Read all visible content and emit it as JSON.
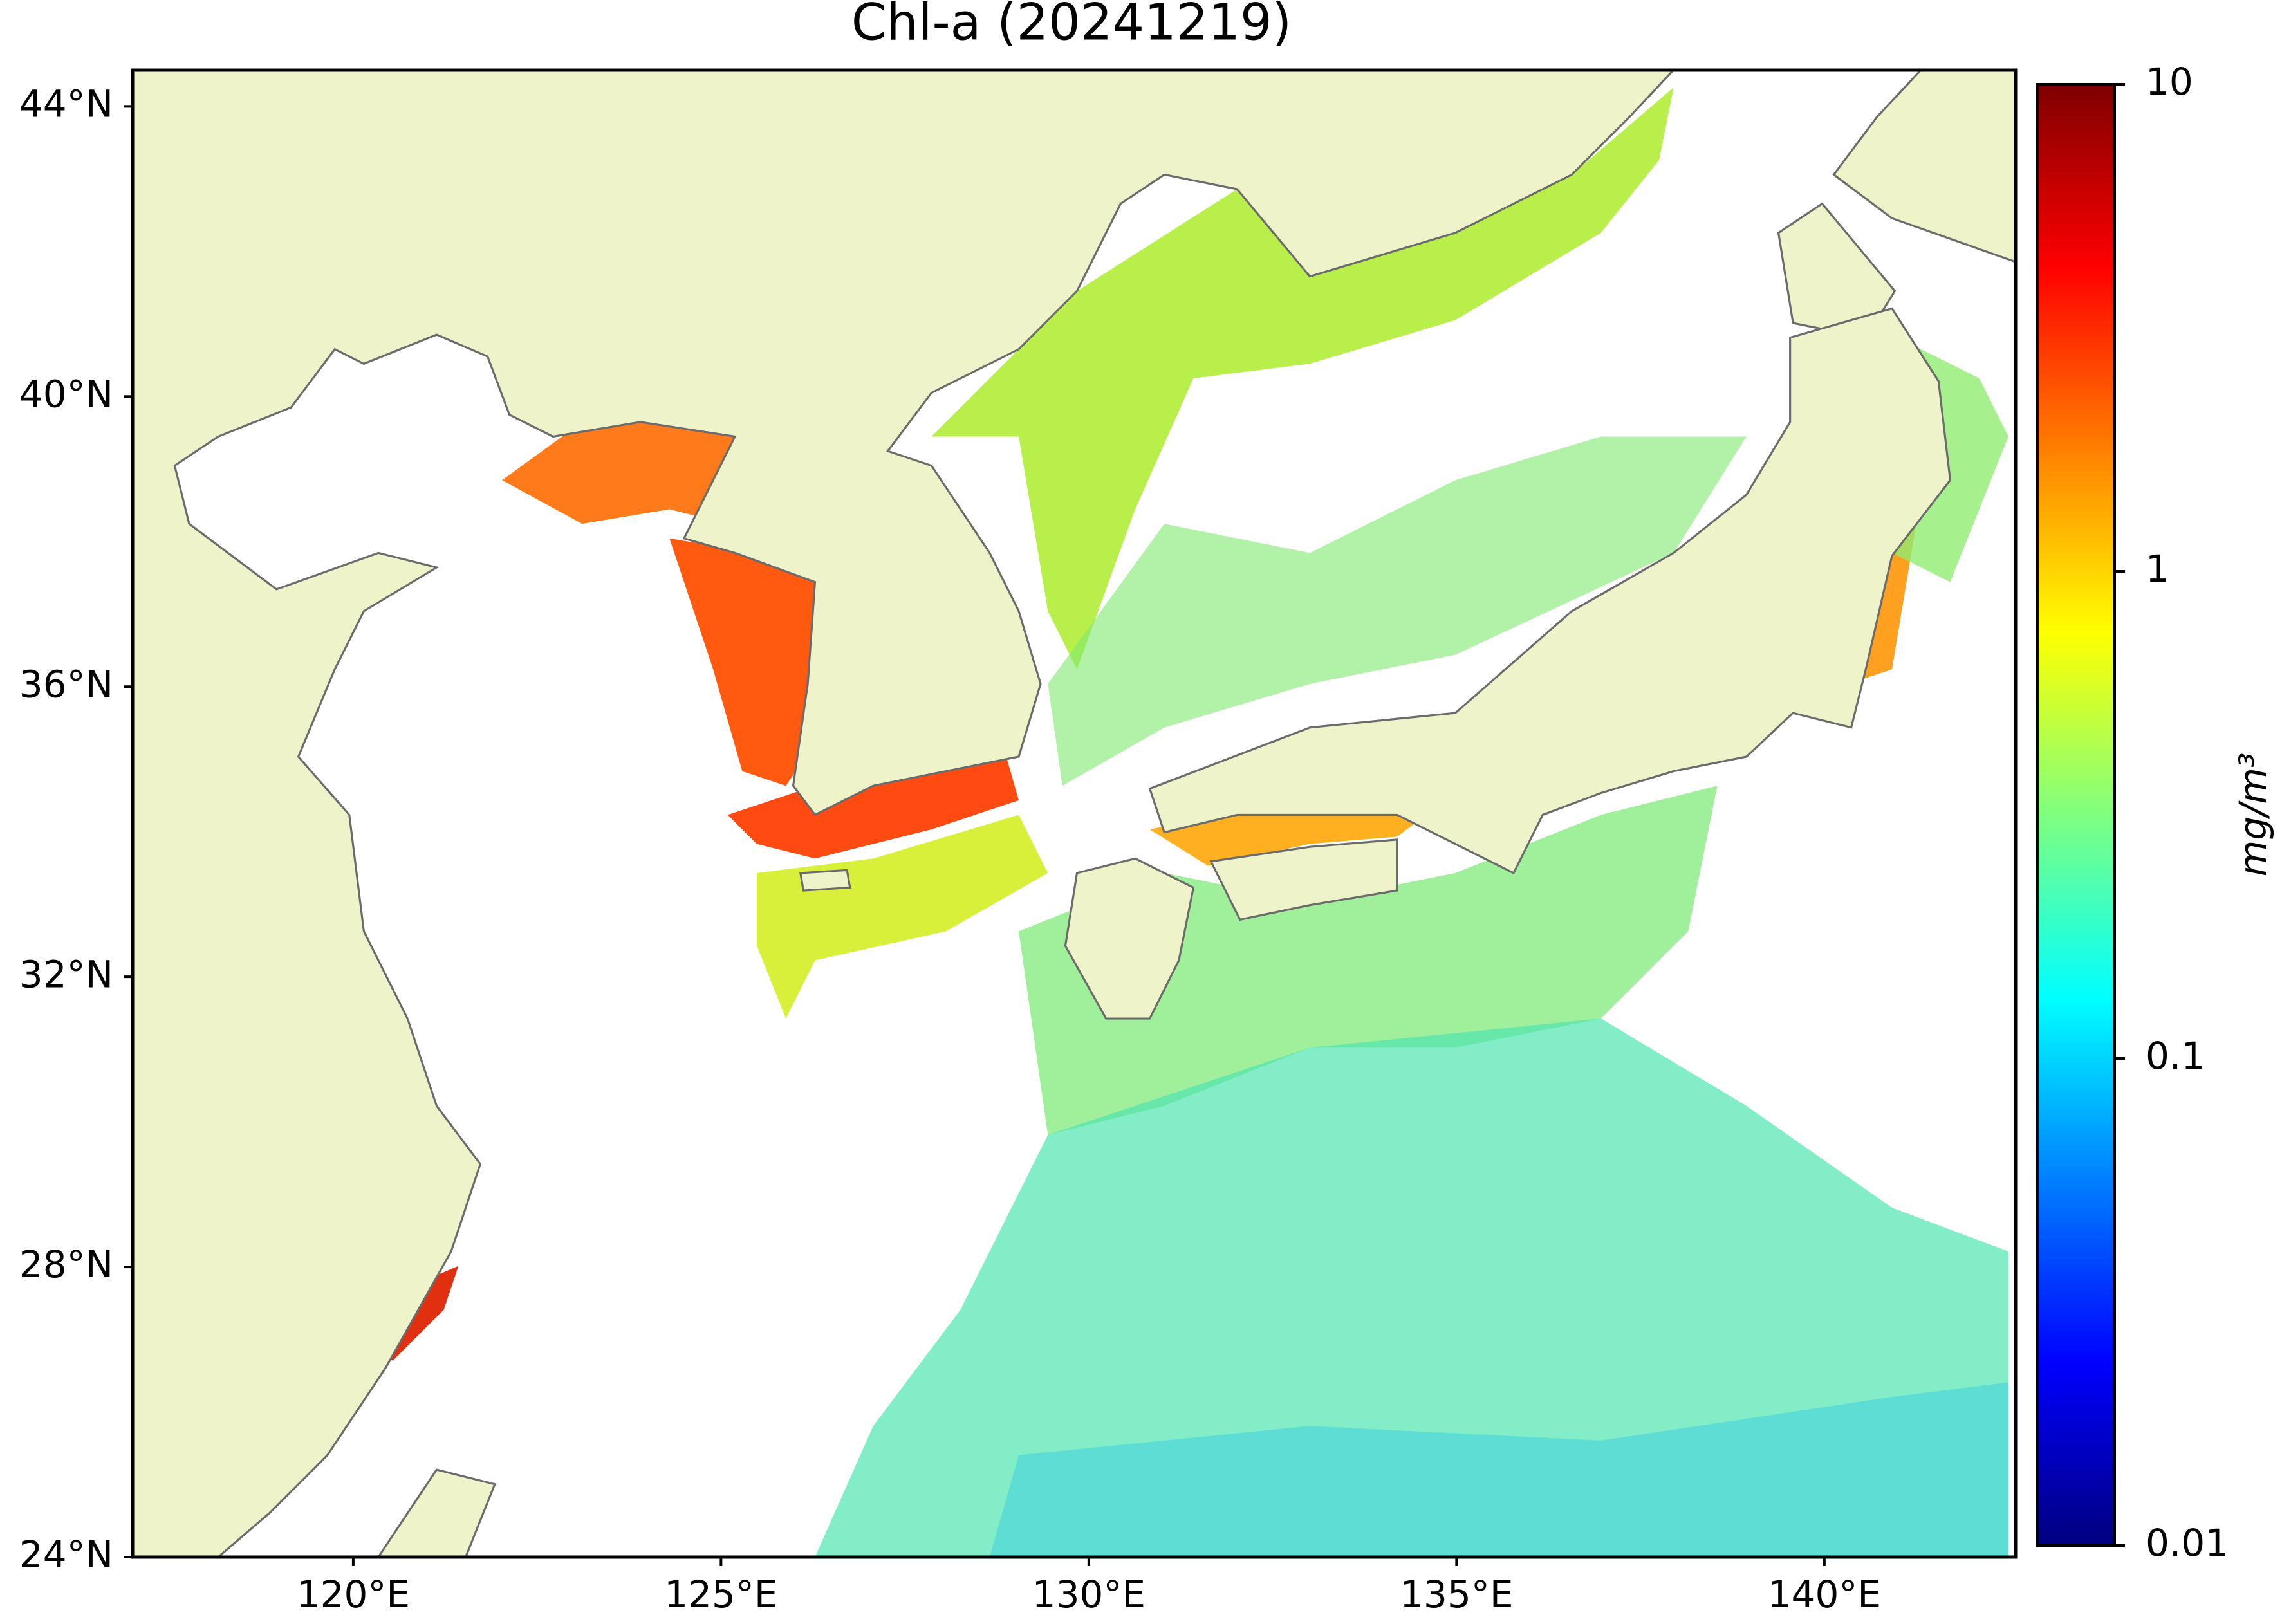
{
  "chart_data": {
    "type": "map",
    "title": "Chl-a (20241219)",
    "xlim": [
      117,
      142.6
    ],
    "xticks": [
      {
        "value": 120,
        "label": "120°E"
      },
      {
        "value": 125,
        "label": "125°E"
      },
      {
        "value": 130,
        "label": "130°E"
      },
      {
        "value": 135,
        "label": "135°E"
      },
      {
        "value": 140,
        "label": "140°E"
      }
    ],
    "ylim": [
      24,
      44.5
    ],
    "yticks": [
      {
        "value": 24,
        "label": "24°N"
      },
      {
        "value": 28,
        "label": "28°N"
      },
      {
        "value": 32,
        "label": "32°N"
      },
      {
        "value": 36,
        "label": "36°N"
      },
      {
        "value": 40,
        "label": "40°N"
      },
      {
        "value": 44,
        "label": "44°N"
      }
    ],
    "colorbar": {
      "label": "mg/m³",
      "clim": [
        0.01,
        10
      ],
      "log": true,
      "ticks": [
        0.01,
        0.1,
        1,
        10
      ],
      "colormap": "jet"
    },
    "land_color": "#eff3c9",
    "coast_color": "#6b6b6b"
  }
}
